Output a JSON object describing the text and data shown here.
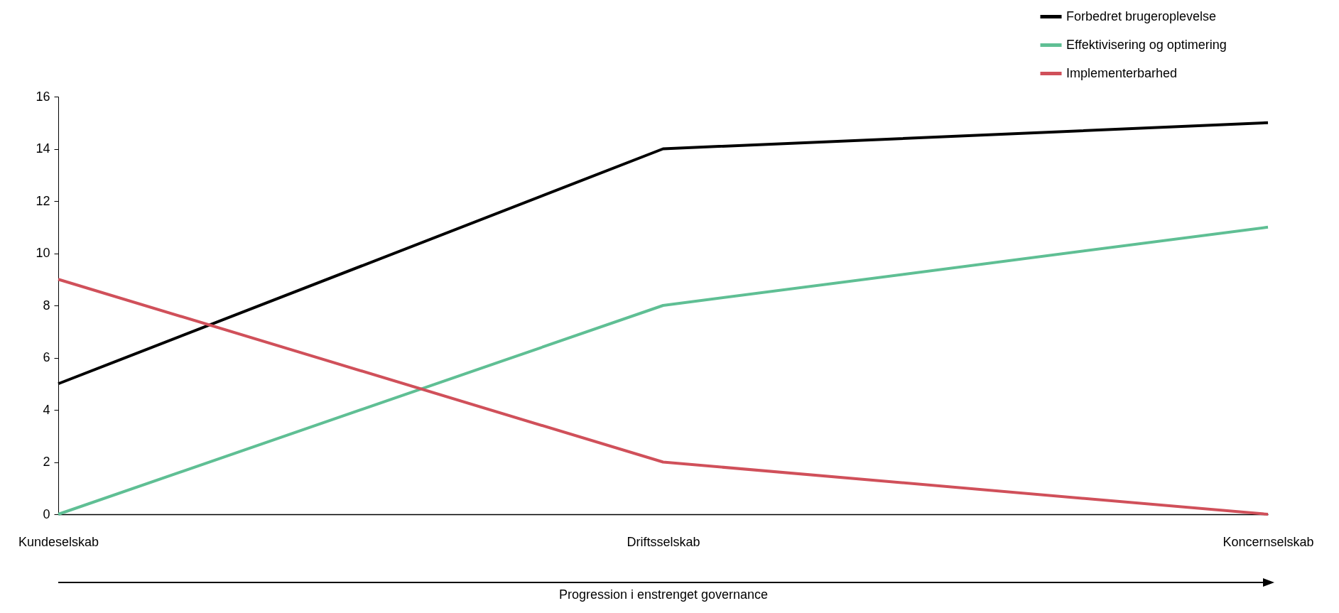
{
  "chart_data": {
    "type": "line",
    "xlabel": "Progression i enstrenget governance",
    "categories": [
      "Kundeselskab",
      "Driftsselskab",
      "Koncernselskab"
    ],
    "series": [
      {
        "name": "Forbedret brugeroplevelse",
        "color": "#000000",
        "values": [
          5,
          14,
          15
        ]
      },
      {
        "name": "Effektivisering og optimering",
        "color": "#5fbf94",
        "values": [
          0,
          8,
          11
        ]
      },
      {
        "name": "Implementerbarhed",
        "color": "#d0505a",
        "values": [
          9,
          2,
          0
        ]
      }
    ],
    "ylim": [
      0,
      16
    ],
    "yticks": [
      0,
      2,
      4,
      6,
      8,
      10,
      12,
      14,
      16
    ],
    "grid": false,
    "legend": "top right",
    "marker": "none",
    "line_style": "solid"
  }
}
